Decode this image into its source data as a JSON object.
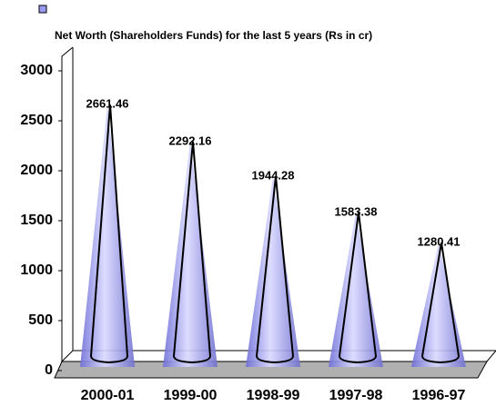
{
  "chart_data": {
    "type": "cone",
    "title": "Net Worth (Shareholders Funds) for the last 5 years (Rs in cr)",
    "categories": [
      "2000-01",
      "1999-00",
      "1998-99",
      "1997-98",
      "1996-97"
    ],
    "values": [
      2661.46,
      2292.16,
      1944.28,
      1583.38,
      1280.41
    ],
    "color": "#9a9aee",
    "ylim": [
      0,
      3000
    ],
    "yticks": [
      0,
      500,
      1000,
      1500,
      2000,
      2500,
      3000
    ]
  }
}
